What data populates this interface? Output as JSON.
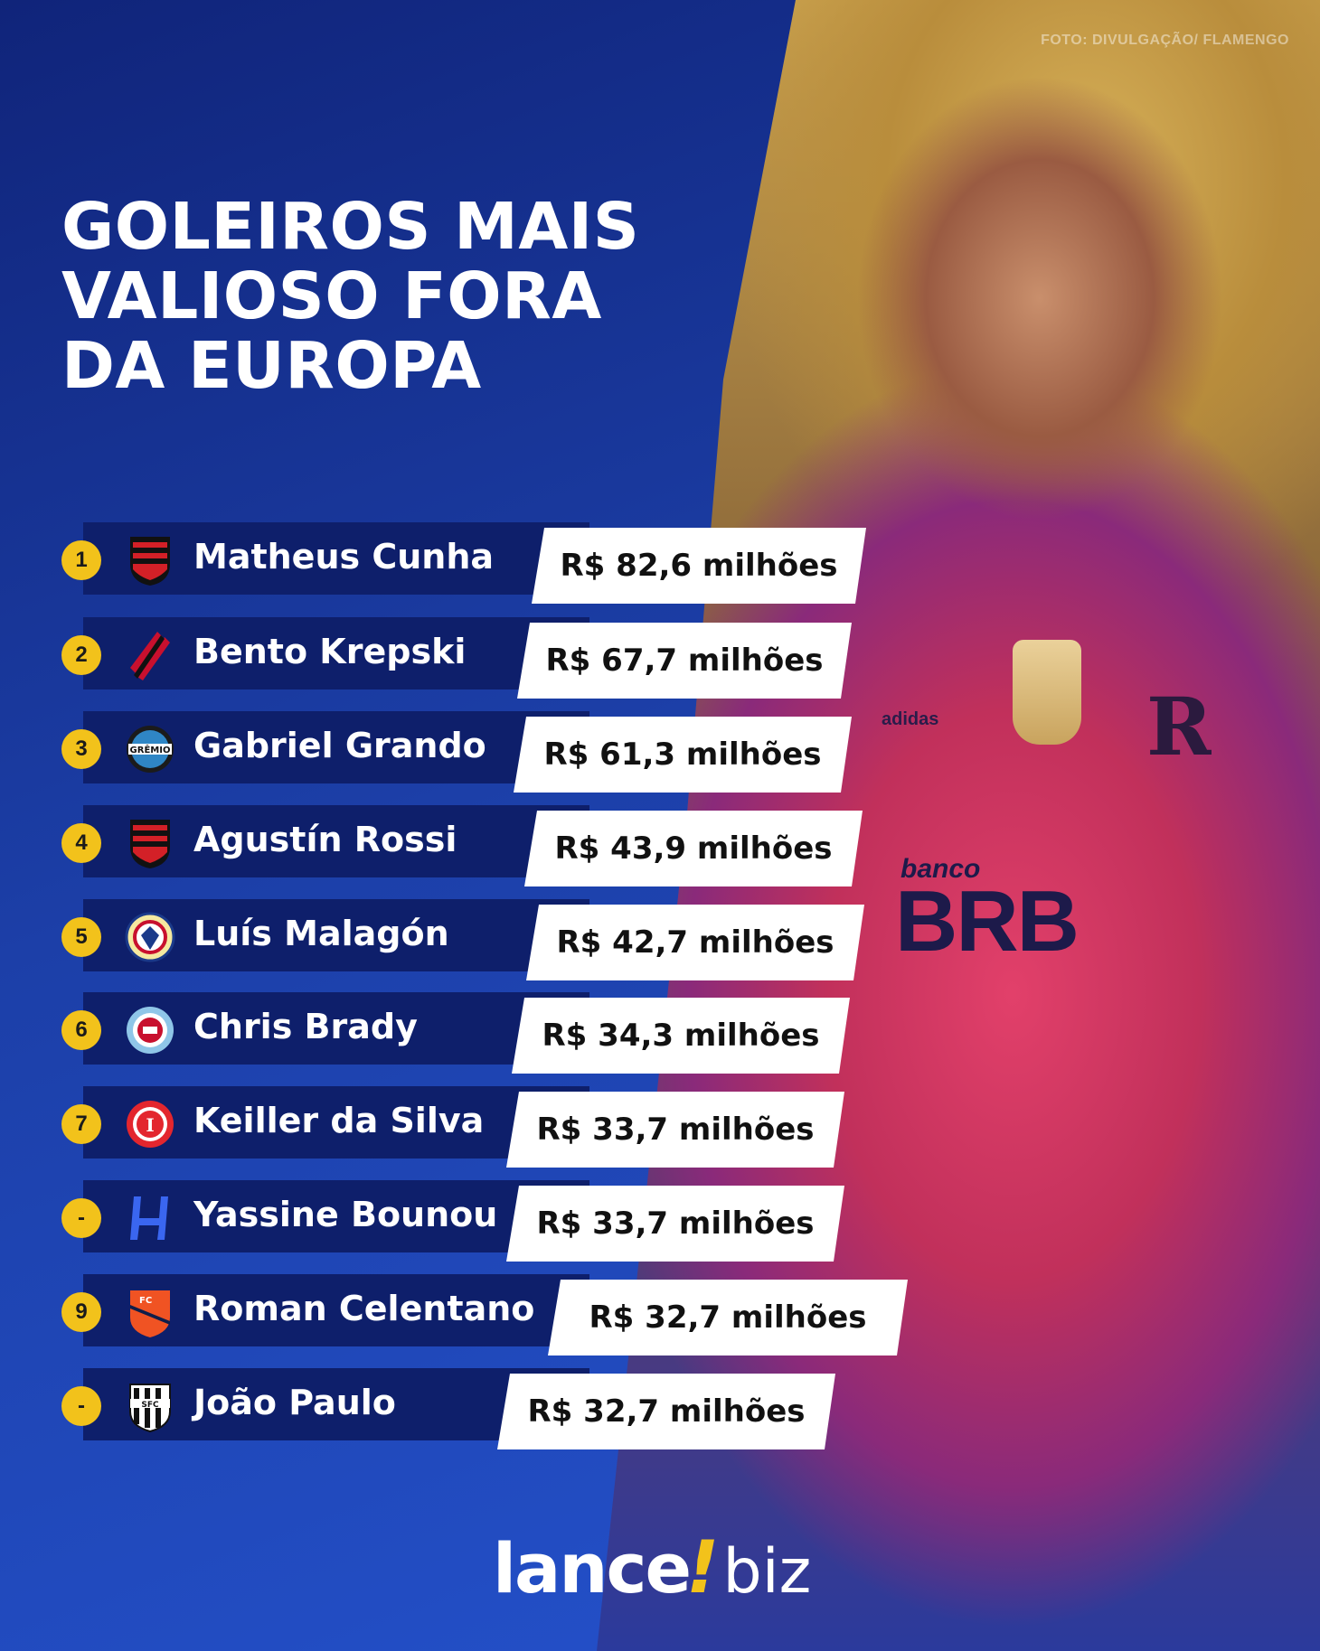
{
  "header": {
    "title_lines": [
      "GOLEIROS MAIS",
      "VALIOSO FORA",
      "DA EUROPA"
    ],
    "photo_credit": "FOTO: DIVULGAÇÃO/ FLAMENGO"
  },
  "photo": {
    "sponsor_small": "banco",
    "sponsor_big": "BRB",
    "kit_brand": "adidas"
  },
  "ranking": [
    {
      "rank": "1",
      "name": "Matheus Cunha",
      "value": "R$ 82,6 milhões",
      "club_icon": "flamengo-crest-icon"
    },
    {
      "rank": "2",
      "name": "Bento Krepski",
      "value": "R$ 67,7 milhões",
      "club_icon": "athletico-crest-icon"
    },
    {
      "rank": "3",
      "name": "Gabriel Grando",
      "value": "R$ 61,3 milhões",
      "club_icon": "gremio-crest-icon"
    },
    {
      "rank": "4",
      "name": "Agustín Rossi",
      "value": "R$ 43,9 milhões",
      "club_icon": "flamengo-crest-icon"
    },
    {
      "rank": "5",
      "name": "Luís Malagón",
      "value": "R$ 42,7 milhões",
      "club_icon": "america-crest-icon"
    },
    {
      "rank": "6",
      "name": "Chris Brady",
      "value": "R$ 34,3 milhões",
      "club_icon": "chicago-fire-crest-icon"
    },
    {
      "rank": "7",
      "name": "Keiller da Silva",
      "value": "R$ 33,7 milhões",
      "club_icon": "internacional-crest-icon"
    },
    {
      "rank": "-",
      "name": "Yassine Bounou",
      "value": "R$ 33,7 milhões",
      "club_icon": "al-hilal-crest-icon"
    },
    {
      "rank": "9",
      "name": "Roman Celentano",
      "value": "R$ 32,7 milhões",
      "club_icon": "cincinnati-crest-icon"
    },
    {
      "rank": "-",
      "name": "João Paulo",
      "value": "R$ 32,7 milhões",
      "club_icon": "santos-crest-icon"
    }
  ],
  "footer": {
    "brand_main": "lance",
    "brand_mark": "!",
    "brand_suffix": "biz"
  },
  "colors": {
    "background": "#1c3fa6",
    "row_bar": "#0e1f6b",
    "rank_badge": "#f2c21b",
    "value_box": "#ffffff"
  }
}
